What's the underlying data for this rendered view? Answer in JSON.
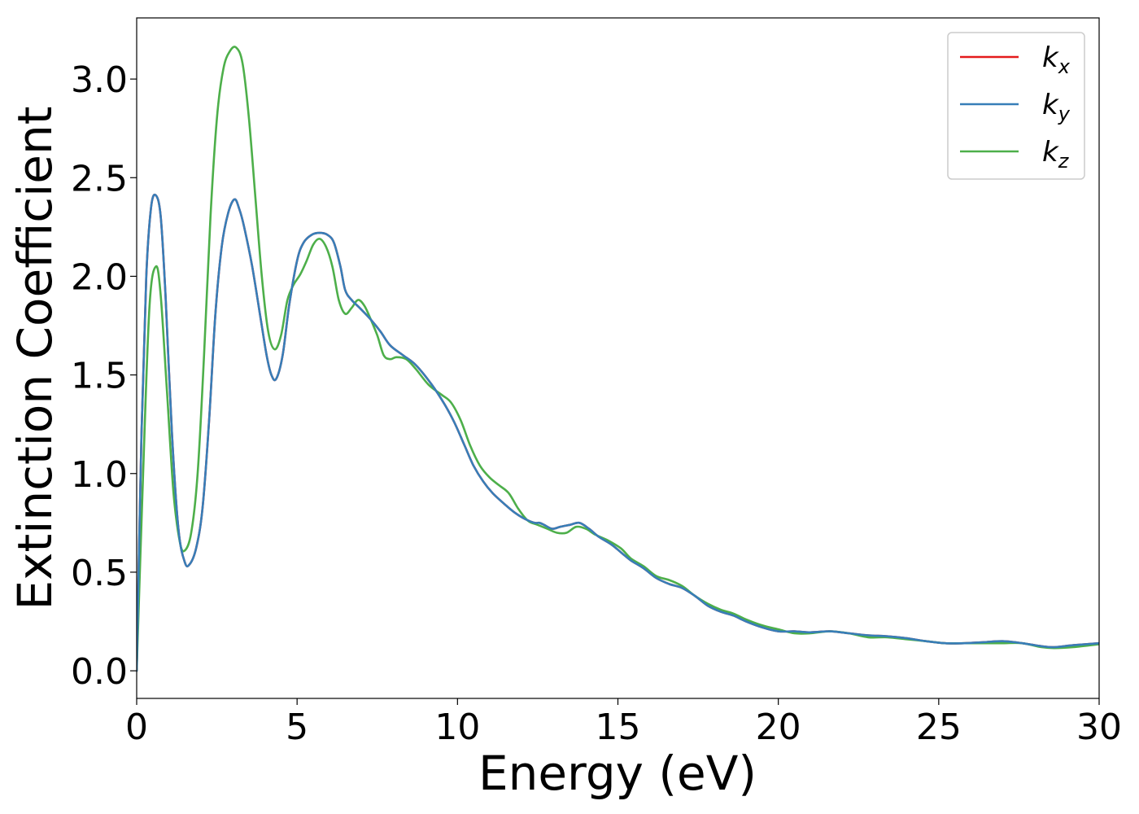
{
  "chart_data": {
    "type": "line",
    "title": "",
    "xlabel": "Energy (eV)",
    "ylabel": "Extinction Coefficient",
    "xlim": [
      0,
      30
    ],
    "ylim": [
      -0.14,
      3.31
    ],
    "x_ticks": [
      0,
      5,
      10,
      15,
      20,
      25,
      30
    ],
    "x_tick_labels": [
      "0",
      "5",
      "10",
      "15",
      "20",
      "25",
      "30"
    ],
    "y_ticks": [
      0.0,
      0.5,
      1.0,
      1.5,
      2.0,
      2.5,
      3.0
    ],
    "y_tick_labels": [
      "0.0",
      "0.5",
      "1.0",
      "1.5",
      "2.0",
      "2.5",
      "3.0"
    ],
    "grid": false,
    "legend_position": "top-right",
    "series": [
      {
        "name": "k_x",
        "base": "k",
        "sub": "x",
        "color": "#e41a1c",
        "points": [
          [
            0,
            0.0
          ],
          [
            0.15,
            1.2
          ],
          [
            0.3,
            2.0
          ],
          [
            0.45,
            2.35
          ],
          [
            0.6,
            2.41
          ],
          [
            0.75,
            2.3
          ],
          [
            0.9,
            1.9
          ],
          [
            1.1,
            1.2
          ],
          [
            1.3,
            0.72
          ],
          [
            1.5,
            0.55
          ],
          [
            1.65,
            0.54
          ],
          [
            1.85,
            0.62
          ],
          [
            2.05,
            0.82
          ],
          [
            2.25,
            1.25
          ],
          [
            2.45,
            1.8
          ],
          [
            2.65,
            2.15
          ],
          [
            2.85,
            2.32
          ],
          [
            3.05,
            2.39
          ],
          [
            3.2,
            2.34
          ],
          [
            3.35,
            2.25
          ],
          [
            3.6,
            2.05
          ],
          [
            3.85,
            1.8
          ],
          [
            4.05,
            1.6
          ],
          [
            4.2,
            1.5
          ],
          [
            4.35,
            1.48
          ],
          [
            4.55,
            1.6
          ],
          [
            4.75,
            1.85
          ],
          [
            5.0,
            2.08
          ],
          [
            5.2,
            2.17
          ],
          [
            5.45,
            2.21
          ],
          [
            5.7,
            2.22
          ],
          [
            5.95,
            2.21
          ],
          [
            6.15,
            2.17
          ],
          [
            6.35,
            2.05
          ],
          [
            6.5,
            1.93
          ],
          [
            6.7,
            1.88
          ],
          [
            6.95,
            1.84
          ],
          [
            7.3,
            1.78
          ],
          [
            7.6,
            1.72
          ],
          [
            7.9,
            1.65
          ],
          [
            8.3,
            1.6
          ],
          [
            8.7,
            1.55
          ],
          [
            9.2,
            1.45
          ],
          [
            9.6,
            1.35
          ],
          [
            9.9,
            1.26
          ],
          [
            10.2,
            1.15
          ],
          [
            10.5,
            1.04
          ],
          [
            10.8,
            0.96
          ],
          [
            11.1,
            0.9
          ],
          [
            11.5,
            0.84
          ],
          [
            11.8,
            0.8
          ],
          [
            12.1,
            0.77
          ],
          [
            12.4,
            0.75
          ],
          [
            12.55,
            0.75
          ],
          [
            12.7,
            0.74
          ],
          [
            12.95,
            0.72
          ],
          [
            13.2,
            0.73
          ],
          [
            13.5,
            0.74
          ],
          [
            13.8,
            0.75
          ],
          [
            14.1,
            0.72
          ],
          [
            14.4,
            0.68
          ],
          [
            14.8,
            0.64
          ],
          [
            15.1,
            0.6
          ],
          [
            15.4,
            0.56
          ],
          [
            15.8,
            0.52
          ],
          [
            16.2,
            0.47
          ],
          [
            16.6,
            0.44
          ],
          [
            17.0,
            0.42
          ],
          [
            17.4,
            0.38
          ],
          [
            17.8,
            0.33
          ],
          [
            18.2,
            0.3
          ],
          [
            18.6,
            0.28
          ],
          [
            19.0,
            0.25
          ],
          [
            19.5,
            0.22
          ],
          [
            20.0,
            0.2
          ],
          [
            20.5,
            0.2
          ],
          [
            21.0,
            0.195
          ],
          [
            21.6,
            0.2
          ],
          [
            22.2,
            0.19
          ],
          [
            22.8,
            0.18
          ],
          [
            23.4,
            0.175
          ],
          [
            24.0,
            0.165
          ],
          [
            24.6,
            0.15
          ],
          [
            25.2,
            0.14
          ],
          [
            25.8,
            0.14
          ],
          [
            26.4,
            0.145
          ],
          [
            27.0,
            0.15
          ],
          [
            27.6,
            0.14
          ],
          [
            28.2,
            0.125
          ],
          [
            28.6,
            0.12
          ],
          [
            29.2,
            0.13
          ],
          [
            30.0,
            0.14
          ]
        ]
      },
      {
        "name": "k_y",
        "base": "k",
        "sub": "y",
        "color": "#377eb8",
        "points": [
          [
            0,
            0.0
          ],
          [
            0.15,
            1.2
          ],
          [
            0.3,
            2.0
          ],
          [
            0.45,
            2.35
          ],
          [
            0.6,
            2.41
          ],
          [
            0.75,
            2.3
          ],
          [
            0.9,
            1.9
          ],
          [
            1.1,
            1.2
          ],
          [
            1.3,
            0.72
          ],
          [
            1.5,
            0.55
          ],
          [
            1.65,
            0.54
          ],
          [
            1.85,
            0.62
          ],
          [
            2.05,
            0.82
          ],
          [
            2.25,
            1.25
          ],
          [
            2.45,
            1.8
          ],
          [
            2.65,
            2.15
          ],
          [
            2.85,
            2.32
          ],
          [
            3.05,
            2.39
          ],
          [
            3.2,
            2.34
          ],
          [
            3.35,
            2.25
          ],
          [
            3.6,
            2.05
          ],
          [
            3.85,
            1.8
          ],
          [
            4.05,
            1.6
          ],
          [
            4.2,
            1.5
          ],
          [
            4.35,
            1.48
          ],
          [
            4.55,
            1.6
          ],
          [
            4.75,
            1.85
          ],
          [
            5.0,
            2.08
          ],
          [
            5.2,
            2.17
          ],
          [
            5.45,
            2.21
          ],
          [
            5.7,
            2.22
          ],
          [
            5.95,
            2.21
          ],
          [
            6.15,
            2.17
          ],
          [
            6.35,
            2.05
          ],
          [
            6.5,
            1.93
          ],
          [
            6.7,
            1.88
          ],
          [
            6.95,
            1.84
          ],
          [
            7.3,
            1.78
          ],
          [
            7.6,
            1.72
          ],
          [
            7.9,
            1.65
          ],
          [
            8.3,
            1.6
          ],
          [
            8.7,
            1.55
          ],
          [
            9.2,
            1.45
          ],
          [
            9.6,
            1.35
          ],
          [
            9.9,
            1.26
          ],
          [
            10.2,
            1.15
          ],
          [
            10.5,
            1.04
          ],
          [
            10.8,
            0.96
          ],
          [
            11.1,
            0.9
          ],
          [
            11.5,
            0.84
          ],
          [
            11.8,
            0.8
          ],
          [
            12.1,
            0.77
          ],
          [
            12.4,
            0.75
          ],
          [
            12.55,
            0.75
          ],
          [
            12.7,
            0.74
          ],
          [
            12.95,
            0.72
          ],
          [
            13.2,
            0.73
          ],
          [
            13.5,
            0.74
          ],
          [
            13.8,
            0.75
          ],
          [
            14.1,
            0.72
          ],
          [
            14.4,
            0.68
          ],
          [
            14.8,
            0.64
          ],
          [
            15.1,
            0.6
          ],
          [
            15.4,
            0.56
          ],
          [
            15.8,
            0.52
          ],
          [
            16.2,
            0.47
          ],
          [
            16.6,
            0.44
          ],
          [
            17.0,
            0.42
          ],
          [
            17.4,
            0.38
          ],
          [
            17.8,
            0.33
          ],
          [
            18.2,
            0.3
          ],
          [
            18.6,
            0.28
          ],
          [
            19.0,
            0.25
          ],
          [
            19.5,
            0.22
          ],
          [
            20.0,
            0.2
          ],
          [
            20.5,
            0.2
          ],
          [
            21.0,
            0.195
          ],
          [
            21.6,
            0.2
          ],
          [
            22.2,
            0.19
          ],
          [
            22.8,
            0.18
          ],
          [
            23.4,
            0.175
          ],
          [
            24.0,
            0.165
          ],
          [
            24.6,
            0.15
          ],
          [
            25.2,
            0.14
          ],
          [
            25.8,
            0.14
          ],
          [
            26.4,
            0.145
          ],
          [
            27.0,
            0.15
          ],
          [
            27.6,
            0.14
          ],
          [
            28.2,
            0.125
          ],
          [
            28.6,
            0.12
          ],
          [
            29.2,
            0.13
          ],
          [
            30.0,
            0.14
          ]
        ]
      },
      {
        "name": "k_z",
        "base": "k",
        "sub": "z",
        "color": "#4daf4a",
        "points": [
          [
            0,
            0.0
          ],
          [
            0.2,
            1.0
          ],
          [
            0.4,
            1.85
          ],
          [
            0.6,
            2.05
          ],
          [
            0.75,
            1.9
          ],
          [
            0.95,
            1.4
          ],
          [
            1.15,
            0.9
          ],
          [
            1.35,
            0.65
          ],
          [
            1.5,
            0.61
          ],
          [
            1.7,
            0.7
          ],
          [
            1.9,
            1.0
          ],
          [
            2.1,
            1.6
          ],
          [
            2.3,
            2.3
          ],
          [
            2.5,
            2.8
          ],
          [
            2.7,
            3.05
          ],
          [
            2.9,
            3.14
          ],
          [
            3.1,
            3.16
          ],
          [
            3.3,
            3.08
          ],
          [
            3.5,
            2.8
          ],
          [
            3.7,
            2.4
          ],
          [
            3.9,
            2.0
          ],
          [
            4.1,
            1.72
          ],
          [
            4.3,
            1.63
          ],
          [
            4.5,
            1.7
          ],
          [
            4.7,
            1.88
          ],
          [
            4.9,
            1.96
          ],
          [
            5.1,
            2.01
          ],
          [
            5.3,
            2.08
          ],
          [
            5.5,
            2.16
          ],
          [
            5.7,
            2.19
          ],
          [
            5.9,
            2.15
          ],
          [
            6.1,
            2.05
          ],
          [
            6.3,
            1.88
          ],
          [
            6.5,
            1.81
          ],
          [
            6.7,
            1.84
          ],
          [
            6.9,
            1.88
          ],
          [
            7.1,
            1.85
          ],
          [
            7.3,
            1.78
          ],
          [
            7.5,
            1.7
          ],
          [
            7.7,
            1.6
          ],
          [
            7.9,
            1.58
          ],
          [
            8.1,
            1.59
          ],
          [
            8.4,
            1.58
          ],
          [
            8.7,
            1.53
          ],
          [
            9.1,
            1.45
          ],
          [
            9.5,
            1.4
          ],
          [
            9.8,
            1.36
          ],
          [
            10.1,
            1.27
          ],
          [
            10.4,
            1.14
          ],
          [
            10.7,
            1.04
          ],
          [
            11.0,
            0.98
          ],
          [
            11.3,
            0.94
          ],
          [
            11.6,
            0.9
          ],
          [
            11.9,
            0.82
          ],
          [
            12.2,
            0.76
          ],
          [
            12.5,
            0.74
          ],
          [
            12.8,
            0.72
          ],
          [
            13.1,
            0.7
          ],
          [
            13.4,
            0.7
          ],
          [
            13.7,
            0.73
          ],
          [
            14.0,
            0.72
          ],
          [
            14.3,
            0.69
          ],
          [
            14.7,
            0.66
          ],
          [
            15.1,
            0.62
          ],
          [
            15.4,
            0.57
          ],
          [
            15.8,
            0.53
          ],
          [
            16.2,
            0.48
          ],
          [
            16.6,
            0.46
          ],
          [
            17.0,
            0.43
          ],
          [
            17.4,
            0.38
          ],
          [
            17.8,
            0.34
          ],
          [
            18.2,
            0.31
          ],
          [
            18.6,
            0.29
          ],
          [
            19.0,
            0.26
          ],
          [
            19.5,
            0.23
          ],
          [
            20.0,
            0.21
          ],
          [
            20.5,
            0.19
          ],
          [
            21.0,
            0.19
          ],
          [
            21.6,
            0.2
          ],
          [
            22.2,
            0.19
          ],
          [
            22.8,
            0.17
          ],
          [
            23.4,
            0.17
          ],
          [
            24.0,
            0.16
          ],
          [
            24.6,
            0.15
          ],
          [
            25.2,
            0.14
          ],
          [
            25.8,
            0.14
          ],
          [
            26.4,
            0.14
          ],
          [
            27.0,
            0.14
          ],
          [
            27.6,
            0.14
          ],
          [
            28.2,
            0.12
          ],
          [
            28.6,
            0.115
          ],
          [
            29.2,
            0.12
          ],
          [
            30.0,
            0.135
          ]
        ]
      }
    ]
  }
}
